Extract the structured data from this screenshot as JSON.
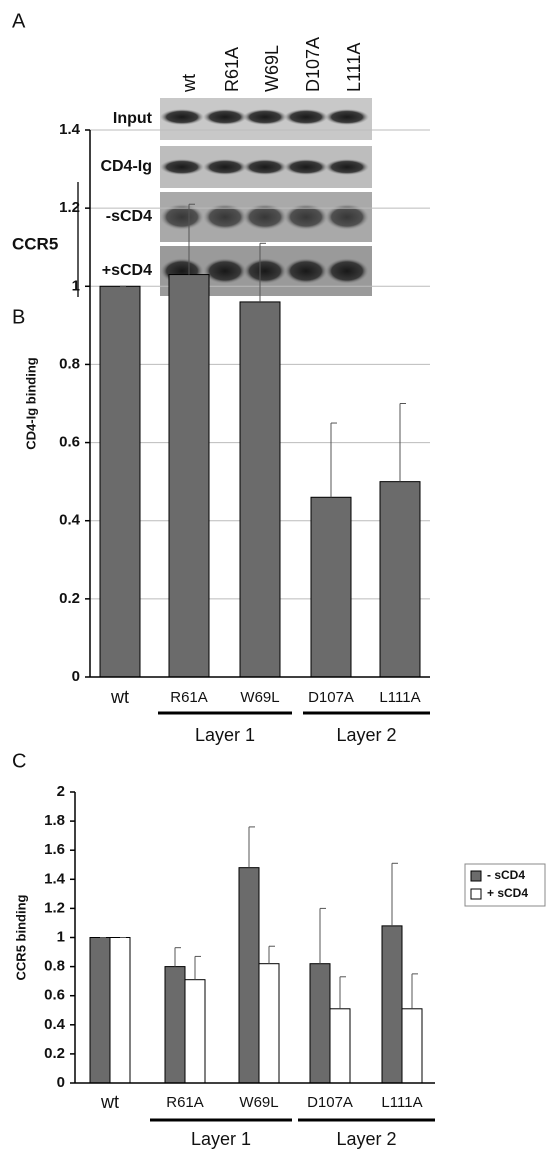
{
  "figure": {
    "panel_a": {
      "label": "A",
      "lanes": [
        "wt",
        "R61A",
        "W69L",
        "D107A",
        "L111A"
      ],
      "rows": [
        "Input",
        "CD4-Ig",
        "-sCD4",
        "+sCD4"
      ],
      "row_group": "CCR5"
    }
  },
  "chart_data": [
    {
      "type": "bar",
      "panel_label": "B",
      "y_label": "CD4-Ig binding",
      "categories": [
        "wt",
        "R61A",
        "W69L",
        "D107A",
        "L111A"
      ],
      "values": [
        1.0,
        1.03,
        0.96,
        0.46,
        0.5
      ],
      "errors": [
        0,
        0.18,
        0.15,
        0.19,
        0.2
      ],
      "color": "#6b6b6b",
      "groups": [
        "Layer 1",
        "Layer 2"
      ],
      "ylim": [
        0,
        1.4
      ],
      "yticks": [
        0,
        0.2,
        0.4,
        0.6,
        0.8,
        1,
        1.2,
        1.4
      ],
      "grid": true
    },
    {
      "type": "bar",
      "panel_label": "C",
      "y_label": "CCR5 binding",
      "categories": [
        "wt",
        "R61A",
        "W69L",
        "D107A",
        "L111A"
      ],
      "series": [
        {
          "name": "- sCD4",
          "color": "#6b6b6b",
          "values": [
            1.0,
            0.8,
            1.48,
            0.82,
            1.08
          ],
          "errors": [
            0,
            0.13,
            0.28,
            0.38,
            0.43
          ]
        },
        {
          "name": "+ sCD4",
          "color": "#ffffff",
          "values": [
            1.0,
            0.71,
            0.82,
            0.51,
            0.51
          ],
          "errors": [
            0,
            0.16,
            0.12,
            0.22,
            0.24
          ]
        }
      ],
      "groups": [
        "Layer 1",
        "Layer 2"
      ],
      "ylim": [
        0,
        2
      ],
      "yticks": [
        0,
        0.2,
        0.4,
        0.6,
        0.8,
        1,
        1.2,
        1.4,
        1.6,
        1.8,
        2
      ],
      "grid": false,
      "legend": "right"
    }
  ]
}
